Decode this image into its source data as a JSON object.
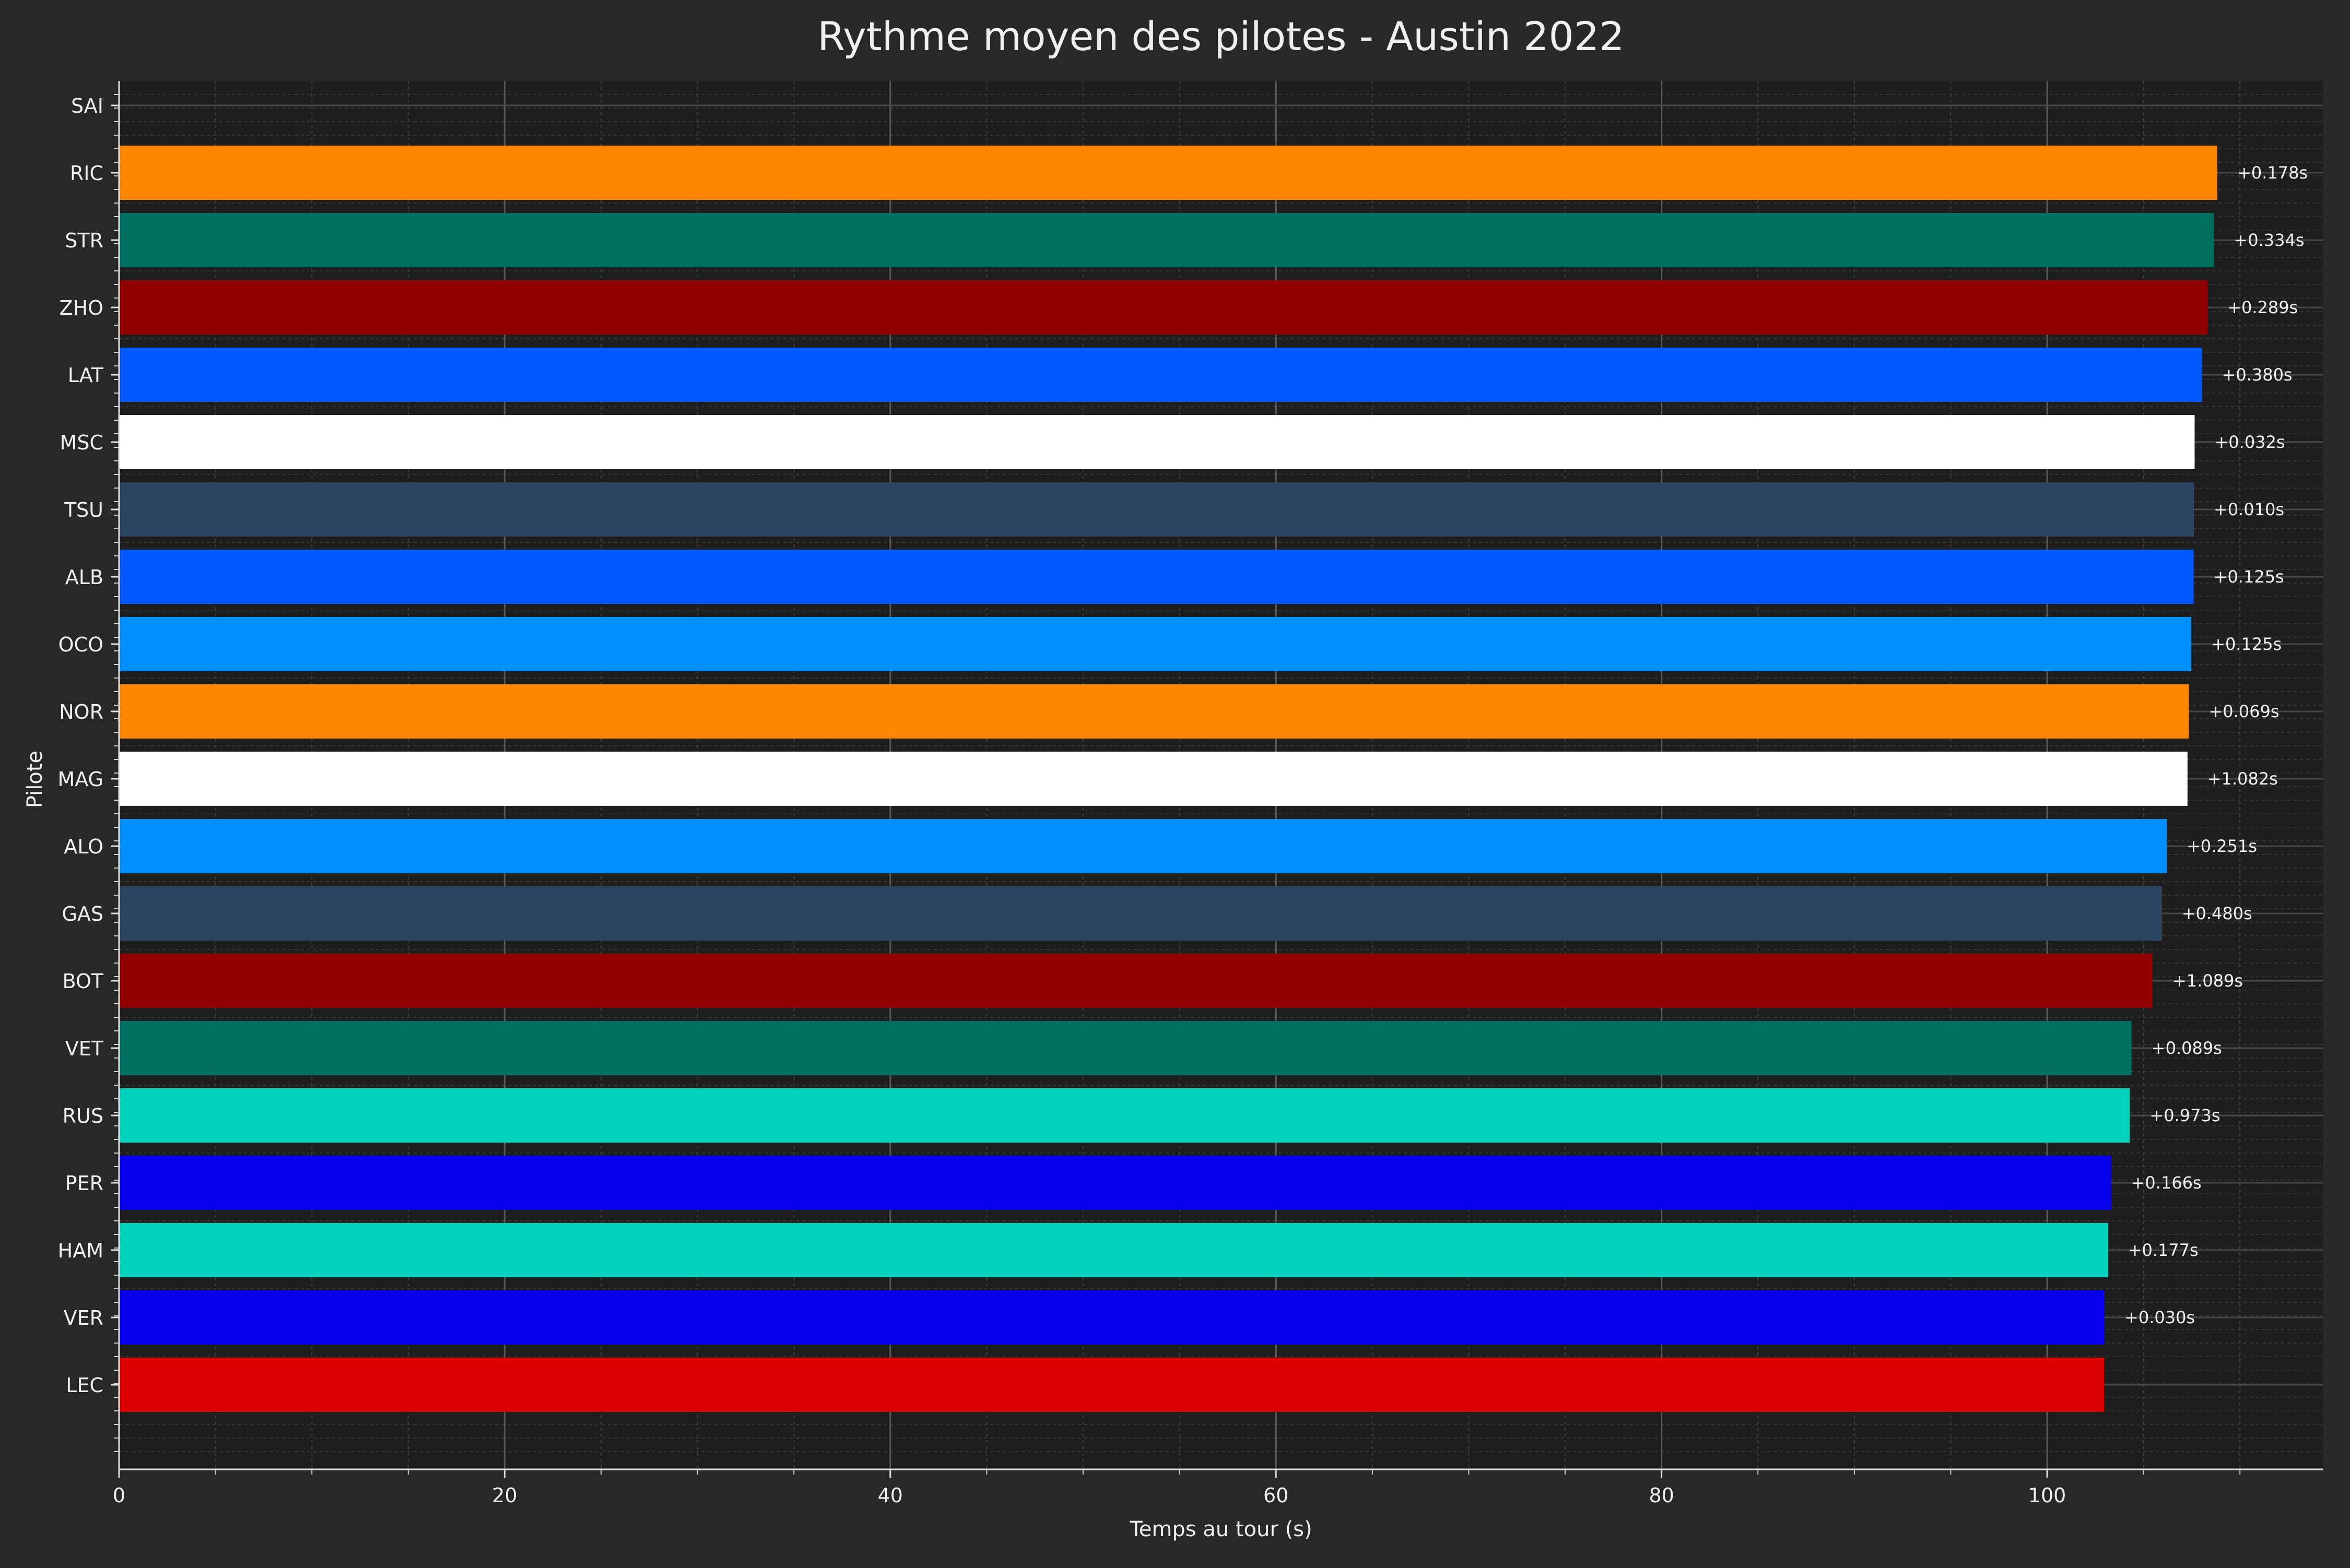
{
  "chart_data": {
    "type": "bar",
    "orientation": "horizontal",
    "title": "Rythme moyen des pilotes - Austin 2022",
    "xlabel": "Temps au tour (s)",
    "ylabel": "Pilote",
    "xlim": [
      0,
      114.3
    ],
    "xticks": [
      0,
      20,
      40,
      60,
      80,
      100
    ],
    "grid": true,
    "legend": "none",
    "bars": [
      {
        "driver": "LEC",
        "value": 102.95,
        "color": "#dc0000",
        "label": ""
      },
      {
        "driver": "VER",
        "value": 102.98,
        "color": "#0600ef",
        "label": "+0.030s"
      },
      {
        "driver": "HAM",
        "value": 103.16,
        "color": "#00d2be",
        "label": "+0.177s"
      },
      {
        "driver": "PER",
        "value": 103.32,
        "color": "#0600ef",
        "label": "+0.166s"
      },
      {
        "driver": "RUS",
        "value": 104.29,
        "color": "#00d2be",
        "label": "+0.973s"
      },
      {
        "driver": "VET",
        "value": 104.38,
        "color": "#006f62",
        "label": "+0.089s"
      },
      {
        "driver": "BOT",
        "value": 105.47,
        "color": "#900000",
        "label": "+1.089s"
      },
      {
        "driver": "GAS",
        "value": 105.95,
        "color": "#2b4562",
        "label": "+0.480s"
      },
      {
        "driver": "ALO",
        "value": 106.2,
        "color": "#0090ff",
        "label": "+0.251s"
      },
      {
        "driver": "MAG",
        "value": 107.28,
        "color": "#ffffff",
        "label": "+1.082s"
      },
      {
        "driver": "NOR",
        "value": 107.35,
        "color": "#ff8700",
        "label": "+0.069s"
      },
      {
        "driver": "OCO",
        "value": 107.48,
        "color": "#0090ff",
        "label": "+0.125s"
      },
      {
        "driver": "ALB",
        "value": 107.6,
        "color": "#005aff",
        "label": "+0.125s"
      },
      {
        "driver": "TSU",
        "value": 107.61,
        "color": "#2b4562",
        "label": "+0.010s"
      },
      {
        "driver": "MSC",
        "value": 107.65,
        "color": "#ffffff",
        "label": "+0.032s"
      },
      {
        "driver": "LAT",
        "value": 108.03,
        "color": "#005aff",
        "label": "+0.380s"
      },
      {
        "driver": "ZHO",
        "value": 108.32,
        "color": "#900000",
        "label": "+0.289s"
      },
      {
        "driver": "STR",
        "value": 108.65,
        "color": "#006f62",
        "label": "+0.334s"
      },
      {
        "driver": "RIC",
        "value": 108.83,
        "color": "#ff8700",
        "label": "+0.178s"
      },
      {
        "driver": "SAI",
        "value": 0,
        "color": "#dc0000",
        "label": ""
      }
    ]
  }
}
